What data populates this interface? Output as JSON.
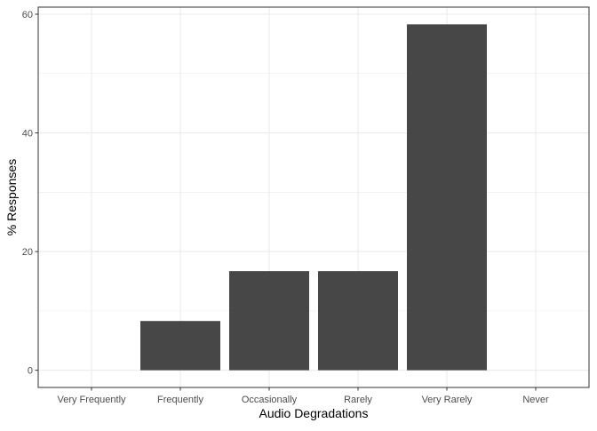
{
  "chart_data": {
    "type": "bar",
    "title": "",
    "xlabel": "Audio Degradations",
    "ylabel": "% Responses",
    "categories": [
      "Very Frequently",
      "Frequently",
      "Occasionally",
      "Rarely",
      "Very Rarely",
      "Never"
    ],
    "values": [
      0,
      8.3,
      16.7,
      16.7,
      58.3,
      0
    ],
    "ylim": [
      -2.9,
      61.2
    ],
    "yticks": [
      0,
      20,
      40,
      60
    ],
    "ytick_labels": [
      "0",
      "20",
      "40",
      "60"
    ],
    "grid": true,
    "legend": "none",
    "bar_color": "#474747",
    "grid_color": "#ebebeb",
    "panel_border_color": "#333333"
  }
}
